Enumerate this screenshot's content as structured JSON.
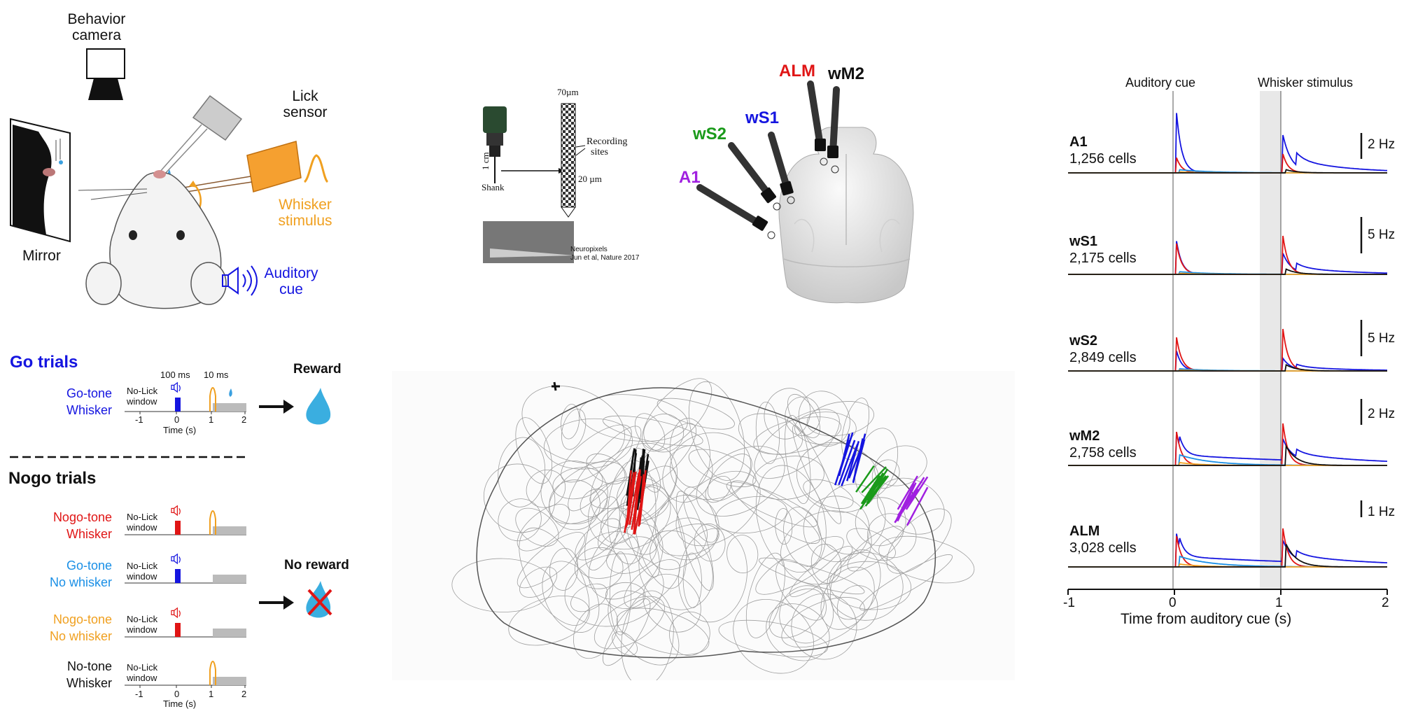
{
  "setup": {
    "camera_label_line1": "Behavior",
    "camera_label_line2": "camera",
    "lick_label_line1": "Lick",
    "lick_label_line2": "sensor",
    "whisker_label_line1": "Whisker",
    "whisker_label_line2": "stimulus",
    "mirror_label": "Mirror",
    "auditory_label_line1": "Auditory",
    "auditory_label_line2": "cue"
  },
  "trials": {
    "go_title": "Go trials",
    "nogo_title": "Nogo trials",
    "reward_label": "Reward",
    "no_reward_label": "No reward",
    "no_lick_line1": "No-Lick",
    "no_lick_line2": "window",
    "label_100ms": "100 ms",
    "label_10ms": "10 ms",
    "time_label": "Time (s)",
    "tick_m1": "-1",
    "tick_0": "0",
    "tick_1": "1",
    "tick_2": "2",
    "go": {
      "line1": "Go-tone",
      "line2": "Whisker"
    },
    "nogo_whisker": {
      "line1": "Nogo-tone",
      "line2": "Whisker"
    },
    "go_nowhisker": {
      "line1": "Go-tone",
      "line2": "No whisker"
    },
    "nogo_nowhisker": {
      "line1": "Nogo-tone",
      "line2": "No whisker"
    },
    "notone_whisker": {
      "line1": "No-tone",
      "line2": "Whisker"
    }
  },
  "probe": {
    "size_70": "70µm",
    "size_20": "20 µm",
    "recording_line1": "Recording",
    "recording_line2": "sites",
    "scale_1cm": "1 cm",
    "shank": "Shank",
    "credit_line1": "Neuropixels",
    "credit_line2": "Jun et al, Nature 2017"
  },
  "brain": {
    "ALM": "ALM",
    "wM2": "wM2",
    "wS1": "wS1",
    "wS2": "wS2",
    "A1": "A1"
  },
  "colors": {
    "go": "#1515e0",
    "nogo": "#e01515",
    "go_light": "#1a8fe6",
    "nogo_light": "#f0a020",
    "wS2": "#1a9a1a",
    "A1": "#a020e0",
    "ALM": "#e01515",
    "wM2": "#111111",
    "wS1": "#1515e0"
  },
  "psth": {
    "auditory_cue_label": "Auditory cue",
    "whisker_stim_label": "Whisker stimulus",
    "xlabel": "Time from auditory cue (s)",
    "xticks": [
      "-1",
      "0",
      "1",
      "2"
    ],
    "panels": [
      {
        "area": "A1",
        "cells": "1,256 cells",
        "scale": "2 Hz"
      },
      {
        "area": "wS1",
        "cells": "2,175 cells",
        "scale": "5 Hz"
      },
      {
        "area": "wS2",
        "cells": "2,849 cells",
        "scale": "5 Hz"
      },
      {
        "area": "wM2",
        "cells": "2,758 cells",
        "scale": "2 Hz"
      },
      {
        "area": "ALM",
        "cells": "3,028 cells",
        "scale": "1 Hz"
      }
    ]
  }
}
